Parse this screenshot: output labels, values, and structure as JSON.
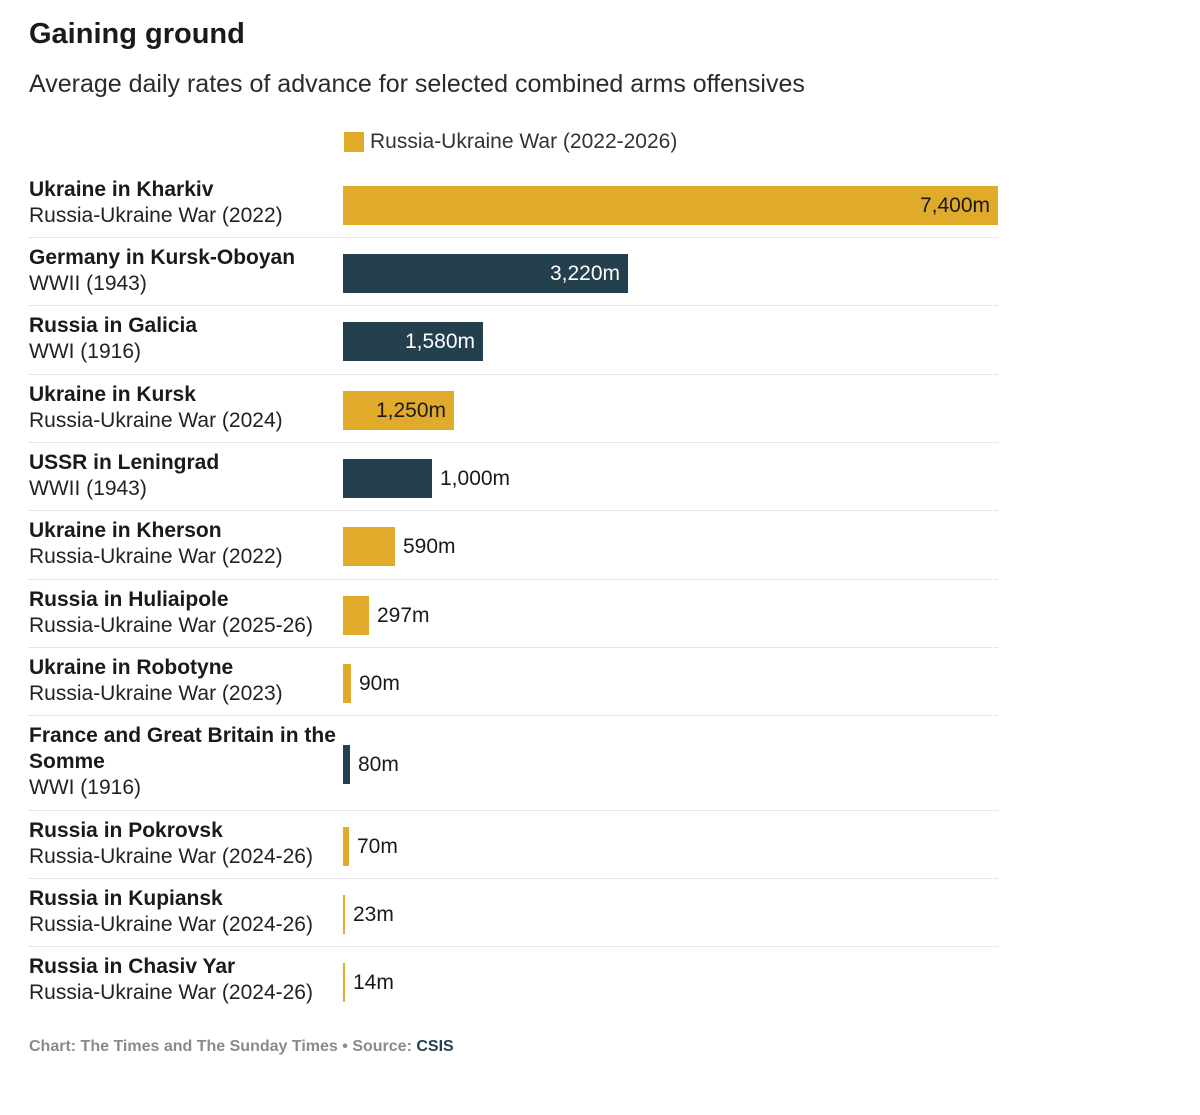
{
  "title": "Gaining ground",
  "subtitle": "Average daily rates of advance for selected combined arms offensives",
  "colors": {
    "russia_ukraine": "#e0aa2a",
    "other": "#243f4e"
  },
  "legend": {
    "label": "Russia-Ukraine War (2022-2026)"
  },
  "chart_data": {
    "type": "bar",
    "orientation": "horizontal",
    "title": "Gaining ground",
    "subtitle": "Average daily rates of advance for selected combined arms offensives",
    "xlabel": "",
    "ylabel": "",
    "xlim": [
      0,
      7400
    ],
    "grid": false,
    "legend": {
      "position": "top",
      "entries": [
        "Russia-Ukraine War (2022-2026)"
      ]
    },
    "categories": [
      {
        "name": "Ukraine in Kharkiv",
        "war": "Russia-Ukraine War (2022)",
        "value": 7400,
        "label": "7,400m",
        "group": "russia_ukraine"
      },
      {
        "name": "Germany in Kursk-Oboyan",
        "war": "WWII (1943)",
        "value": 3220,
        "label": "3,220m",
        "group": "other"
      },
      {
        "name": "Russia in Galicia",
        "war": "WWI (1916)",
        "value": 1580,
        "label": "1,580m",
        "group": "other"
      },
      {
        "name": "Ukraine in Kursk",
        "war": "Russia-Ukraine War (2024)",
        "value": 1250,
        "label": "1,250m",
        "group": "russia_ukraine"
      },
      {
        "name": "USSR in Leningrad",
        "war": "WWII (1943)",
        "value": 1000,
        "label": "1,000m",
        "group": "other"
      },
      {
        "name": "Ukraine in Kherson",
        "war": "Russia-Ukraine War (2022)",
        "value": 590,
        "label": "590m",
        "group": "russia_ukraine"
      },
      {
        "name": "Russia in Huliaipole",
        "war": "Russia-Ukraine War (2025-26)",
        "value": 297,
        "label": "297m",
        "group": "russia_ukraine"
      },
      {
        "name": "Ukraine in Robotyne",
        "war": "Russia-Ukraine War (2023)",
        "value": 90,
        "label": "90m",
        "group": "russia_ukraine"
      },
      {
        "name": "France and Great Britain in the Somme",
        "war": "WWI (1916)",
        "value": 80,
        "label": "80m",
        "group": "other"
      },
      {
        "name": "Russia in Pokrovsk",
        "war": "Russia-Ukraine War (2024-26)",
        "value": 70,
        "label": "70m",
        "group": "russia_ukraine"
      },
      {
        "name": "Russia in Kupiansk",
        "war": "Russia-Ukraine War (2024-26)",
        "value": 23,
        "label": "23m",
        "group": "russia_ukraine"
      },
      {
        "name": "Russia in Chasiv Yar",
        "war": "Russia-Ukraine War (2024-26)",
        "value": 14,
        "label": "14m",
        "group": "russia_ukraine"
      }
    ]
  },
  "footer": {
    "credit": "Chart: The Times and The Sunday Times",
    "separator": "•",
    "source_prefix": "Source:",
    "source_name": "CSIS"
  }
}
